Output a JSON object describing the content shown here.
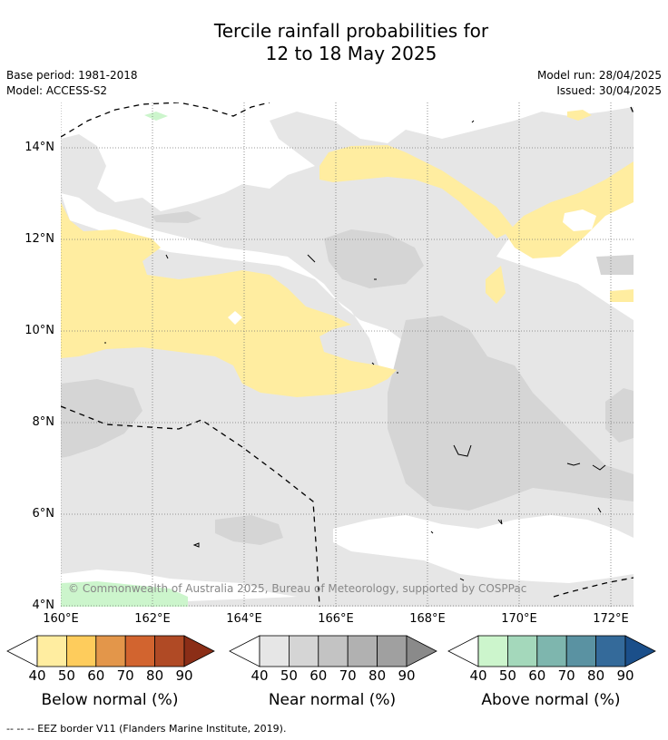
{
  "title_line1": "Tercile rainfall probabilities for",
  "title_line2": "12 to 18 May 2025",
  "base_period": "Base period: 1981-2018",
  "model": "Model: ACCESS-S2",
  "model_run": "Model run: 28/04/2025",
  "issued": "Issued: 30/04/2025",
  "copyright": "© Commonwealth of Australia 2025, Bureau of Meteorology, supported by COSPPac",
  "lat_labels": [
    "14°N",
    "12°N",
    "10°N",
    "8°N",
    "6°N",
    "4°N"
  ],
  "lon_labels": [
    "160°E",
    "162°E",
    "164°E",
    "166°E",
    "168°E",
    "170°E",
    "172°E"
  ],
  "colorbars": [
    {
      "title": "Below normal (%)",
      "ticks": [
        "40",
        "50",
        "60",
        "70",
        "80",
        "90"
      ],
      "colors": [
        "#ffffff",
        "#ffeda0",
        "#fecc5c",
        "#e3964a",
        "#d2642f",
        "#b04a25",
        "#8b2e17"
      ]
    },
    {
      "title": "Near normal (%)",
      "ticks": [
        "40",
        "50",
        "60",
        "70",
        "80",
        "90"
      ],
      "colors": [
        "#ffffff",
        "#e6e6e6",
        "#d5d5d5",
        "#c3c3c3",
        "#b1b1b1",
        "#a0a0a0",
        "#8a8a8a"
      ]
    },
    {
      "title": "Above normal (%)",
      "ticks": [
        "40",
        "50",
        "60",
        "70",
        "80",
        "90"
      ],
      "colors": [
        "#ffffff",
        "#ccf5cc",
        "#a4d8bb",
        "#7eb6ae",
        "#5a92a2",
        "#346a9a",
        "#1b4f8a"
      ]
    }
  ],
  "footer": "--  --  -- EEZ border V11 (Flanders Marine Institute, 2019).",
  "colors": {
    "below_normal": "#ffeda0",
    "near_normal": "#e6e6e6",
    "near_normal_dark": "#d5d5d5",
    "above_normal": "#ccf5cc"
  }
}
